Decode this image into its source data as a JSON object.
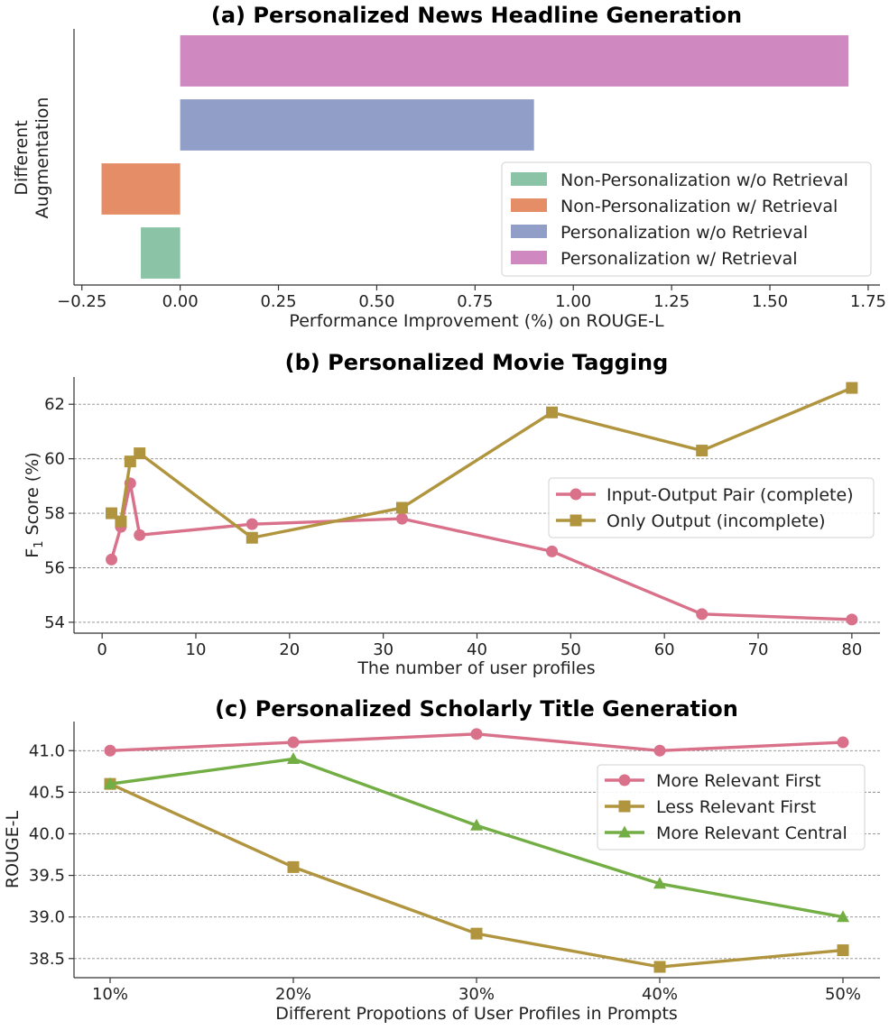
{
  "chart_data": [
    {
      "type": "bar",
      "orientation": "horizontal",
      "title": "(a) Personalized News Headline Generation",
      "xlabel": "Performance Improvement (%) on ROUGE-L",
      "ylabel": [
        "Different",
        "Augmentation"
      ],
      "xlim": [
        -0.27,
        1.78
      ],
      "xticks": [
        -0.25,
        0.0,
        0.25,
        0.5,
        0.75,
        1.0,
        1.25,
        1.5,
        1.75
      ],
      "xtick_labels": [
        "−0.25",
        "0.00",
        "0.25",
        "0.50",
        "0.75",
        "1.00",
        "1.25",
        "1.50",
        "1.75"
      ],
      "legend_position": "lower-right",
      "series": [
        {
          "name": "Non-Personalization w/o Retrieval",
          "value": -0.1,
          "color": "#8ac3a6"
        },
        {
          "name": "Non-Personalization w/ Retrieval",
          "value": -0.2,
          "color": "#e58d66"
        },
        {
          "name": "Personalization w/o Retrieval",
          "value": 0.9,
          "color": "#919fc8"
        },
        {
          "name": "Personalization w/ Retrieval",
          "value": 1.7,
          "color": "#d088c0"
        }
      ]
    },
    {
      "type": "line",
      "title": "(b) Personalized Movie Tagging",
      "xlabel": "The number of user profiles",
      "ylabel": "F",
      "ylabel_sub": "1",
      "ylabel_rest": " Score (%)",
      "xlim": [
        -3,
        83
      ],
      "ylim": [
        53.6,
        63.0
      ],
      "xticks": [
        0,
        10,
        20,
        30,
        40,
        50,
        60,
        70,
        80
      ],
      "xtick_labels": [
        "0",
        "10",
        "20",
        "30",
        "40",
        "50",
        "60",
        "70",
        "80"
      ],
      "yticks": [
        54,
        56,
        58,
        60,
        62
      ],
      "ytick_labels": [
        "54",
        "56",
        "58",
        "60",
        "62"
      ],
      "grid": "y",
      "legend_position": "center-right",
      "series": [
        {
          "name": "Input-Output Pair (complete)",
          "marker": "circle",
          "color": "#d9718b",
          "x": [
            1,
            2,
            3,
            4,
            16,
            32,
            48,
            64,
            80
          ],
          "y": [
            56.3,
            57.5,
            59.1,
            57.2,
            57.6,
            57.8,
            56.6,
            54.3,
            54.1
          ]
        },
        {
          "name": "Only Output (incomplete)",
          "marker": "square",
          "color": "#b0953e",
          "x": [
            1,
            2,
            3,
            4,
            16,
            32,
            48,
            64,
            80
          ],
          "y": [
            58.0,
            57.7,
            59.9,
            60.2,
            57.1,
            58.2,
            61.7,
            60.3,
            62.6
          ]
        }
      ]
    },
    {
      "type": "line",
      "title": "(c) Personalized Scholarly Title Generation",
      "xlabel": "Different Propotions of User Profiles in Prompts",
      "ylabel": "ROUGE-L",
      "categories": [
        "10%",
        "20%",
        "30%",
        "40%",
        "50%"
      ],
      "ylim": [
        38.27,
        41.35
      ],
      "yticks": [
        38.5,
        39.0,
        39.5,
        40.0,
        40.5,
        41.0
      ],
      "ytick_labels": [
        "38.5",
        "39.0",
        "39.5",
        "40.0",
        "40.5",
        "41.0"
      ],
      "grid": "y",
      "legend_position": "upper-right",
      "series": [
        {
          "name": "More Relevant First",
          "marker": "circle",
          "color": "#d9718b",
          "values": [
            41.0,
            41.1,
            41.2,
            41.0,
            41.1
          ]
        },
        {
          "name": "Less Relevant First",
          "marker": "square",
          "color": "#b0953e",
          "values": [
            40.6,
            39.6,
            38.8,
            38.4,
            38.6
          ]
        },
        {
          "name": "More Relevant Central",
          "marker": "triangle",
          "color": "#72ae43",
          "values": [
            40.6,
            40.9,
            40.1,
            39.4,
            39.0
          ]
        }
      ]
    }
  ]
}
